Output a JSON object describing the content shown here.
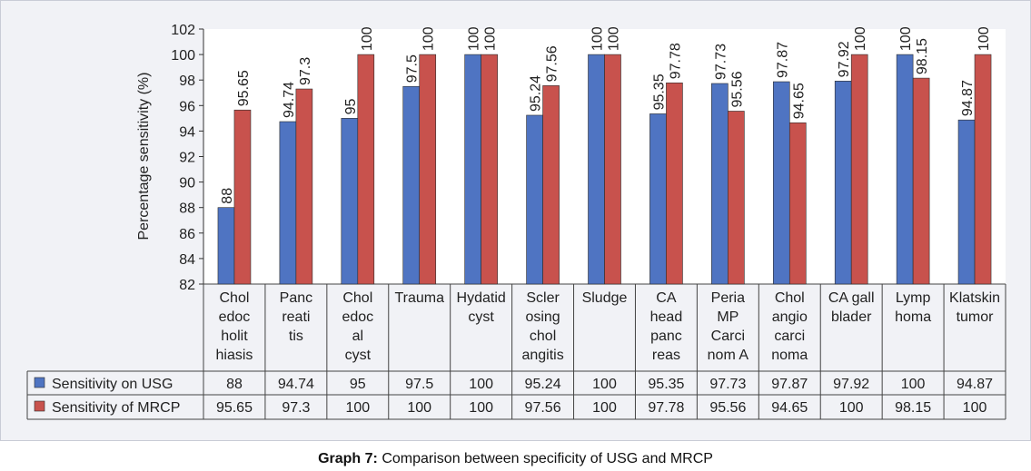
{
  "caption": {
    "label": "Graph 7:",
    "text": "Comparison between specificity of USG and MRCP"
  },
  "chart_data": {
    "type": "bar",
    "ylabel": "Percentage sensitivity (%)",
    "xlabel": "",
    "ylim": [
      82,
      102
    ],
    "yticks": [
      82,
      84,
      86,
      88,
      90,
      92,
      94,
      96,
      98,
      100,
      102
    ],
    "grid": false,
    "legend_placement": "data-table-left",
    "categories": [
      [
        "Chol",
        "edoc",
        "holit",
        "hiasis"
      ],
      [
        "Panc",
        "reati",
        "tis"
      ],
      [
        "Chol",
        "edoc",
        "al",
        "cyst"
      ],
      [
        "Trauma"
      ],
      [
        "Hydatid",
        "cyst"
      ],
      [
        "Scler",
        "osing",
        "chol",
        "angitis"
      ],
      [
        "Sludge"
      ],
      [
        "CA",
        "head",
        "panc",
        "reas"
      ],
      [
        "Peria",
        "MP",
        "Carci",
        "nom A"
      ],
      [
        "Chol",
        "angio",
        "carci",
        "noma"
      ],
      [
        "CA gall",
        "blader"
      ],
      [
        "Lymp",
        "homa"
      ],
      [
        "Klatskin",
        "tumor"
      ]
    ],
    "series": [
      {
        "name": "Sensitivity on USG",
        "color": "#4f74c2",
        "values": [
          88,
          94.74,
          95,
          97.5,
          100,
          95.24,
          100,
          95.35,
          97.73,
          97.87,
          97.92,
          100,
          94.87
        ],
        "labels": [
          "88",
          "94.74",
          "95",
          "97.5",
          "100",
          "95.24",
          "100",
          "95.35",
          "97.73",
          "97.87",
          "97.92",
          "100",
          "94.87"
        ]
      },
      {
        "name": "Sensitivity of MRCP",
        "color": "#c8524d",
        "values": [
          95.65,
          97.3,
          100,
          100,
          100,
          97.56,
          100,
          97.78,
          95.56,
          94.65,
          100,
          98.15,
          100
        ],
        "labels": [
          "95.65",
          "97.3",
          "100",
          "100",
          "100",
          "97.56",
          "100",
          "97.78",
          "95.56",
          "94.65",
          "100",
          "98.15",
          "100"
        ]
      }
    ]
  }
}
